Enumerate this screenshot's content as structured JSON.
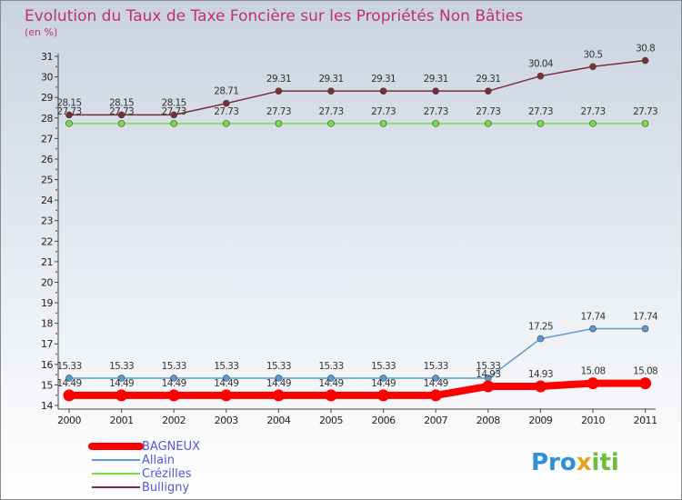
{
  "chart_data": {
    "type": "line",
    "title": "Evolution du Taux de Taxe Foncière sur les Propriétés Non Bâties",
    "ylabel": "(en %)",
    "xlabel": "",
    "categories": [
      "2000",
      "2001",
      "2002",
      "2003",
      "2004",
      "2005",
      "2006",
      "2007",
      "2008",
      "2009",
      "2010",
      "2011"
    ],
    "ylim": [
      14,
      31
    ],
    "yticks": [
      14,
      15,
      16,
      17,
      18,
      19,
      20,
      21,
      22,
      23,
      24,
      25,
      26,
      27,
      28,
      29,
      30,
      31
    ],
    "grid": false,
    "legend_position": "bottom-left",
    "series": [
      {
        "name": "BAGNEUX",
        "color": "#ff0000",
        "values": [
          14.49,
          14.49,
          14.49,
          14.49,
          14.49,
          14.49,
          14.49,
          14.49,
          14.93,
          14.93,
          15.08,
          15.08
        ],
        "labels": [
          "14.49",
          "14.49",
          "14.49",
          "14.49",
          "14.49",
          "14.49",
          "14.49",
          "14.49",
          "14.93",
          "14.93",
          "15.08",
          "15.08"
        ]
      },
      {
        "name": "Allain",
        "color": "#5b9bd5",
        "values": [
          15.33,
          15.33,
          15.33,
          15.33,
          15.33,
          15.33,
          15.33,
          15.33,
          15.33,
          17.25,
          17.74,
          17.74
        ],
        "labels": [
          "15.33",
          "15.33",
          "15.33",
          "15.33",
          "15.33",
          "15.33",
          "15.33",
          "15.33",
          "15.33",
          "17.25",
          "17.74",
          "17.74"
        ]
      },
      {
        "name": "Crézilles",
        "color": "#77dd44",
        "values": [
          27.73,
          27.73,
          27.73,
          27.73,
          27.73,
          27.73,
          27.73,
          27.73,
          27.73,
          27.73,
          27.73,
          27.73
        ],
        "labels": [
          "27.73",
          "27.73",
          "27.73",
          "27.73",
          "27.73",
          "27.73",
          "27.73",
          "27.73",
          "27.73",
          "27.73",
          "27.73",
          "27.73"
        ]
      },
      {
        "name": "Bulligny",
        "color": "#7a2e36",
        "values": [
          28.15,
          28.15,
          28.15,
          28.71,
          29.31,
          29.31,
          29.31,
          29.31,
          29.31,
          30.04,
          30.5,
          30.8
        ],
        "labels": [
          "28.15",
          "28.15",
          "28.15",
          "28.71",
          "29.31",
          "29.31",
          "29.31",
          "29.31",
          "29.31",
          "30.04",
          "30.5",
          "30.8"
        ]
      }
    ]
  },
  "logo": {
    "part1": "Pro",
    "part2": "x",
    "part3": "iti"
  }
}
